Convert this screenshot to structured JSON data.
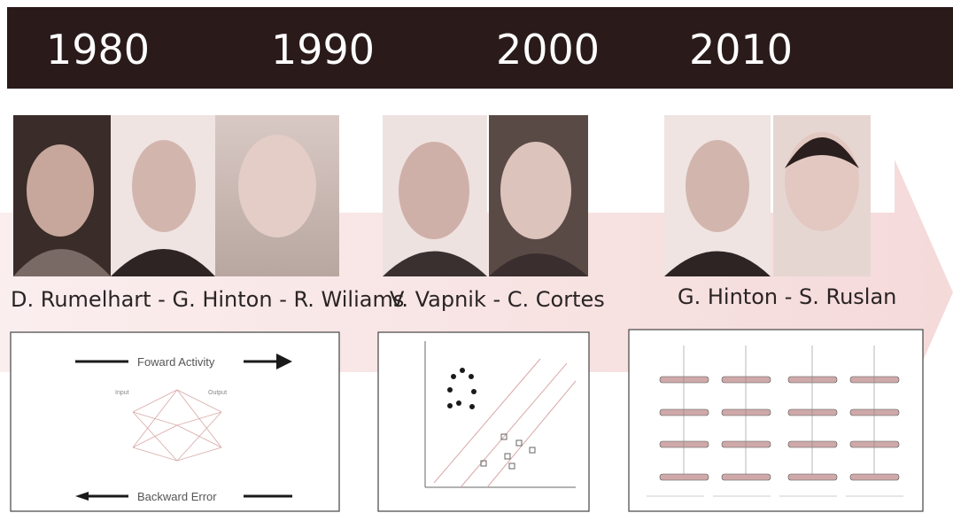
{
  "header": {
    "years": [
      "1980",
      "1990",
      "2000",
      "2010"
    ]
  },
  "captions": [
    "D. Rumelhart - G. Hinton - R. Wiliams",
    "V. Vapnik - C. Cortes",
    "G. Hinton - S. Ruslan"
  ],
  "diagrams": {
    "backprop": {
      "top": "Foward Activity",
      "bottom": "Backward Error",
      "input": "Input",
      "output": "Output"
    }
  }
}
